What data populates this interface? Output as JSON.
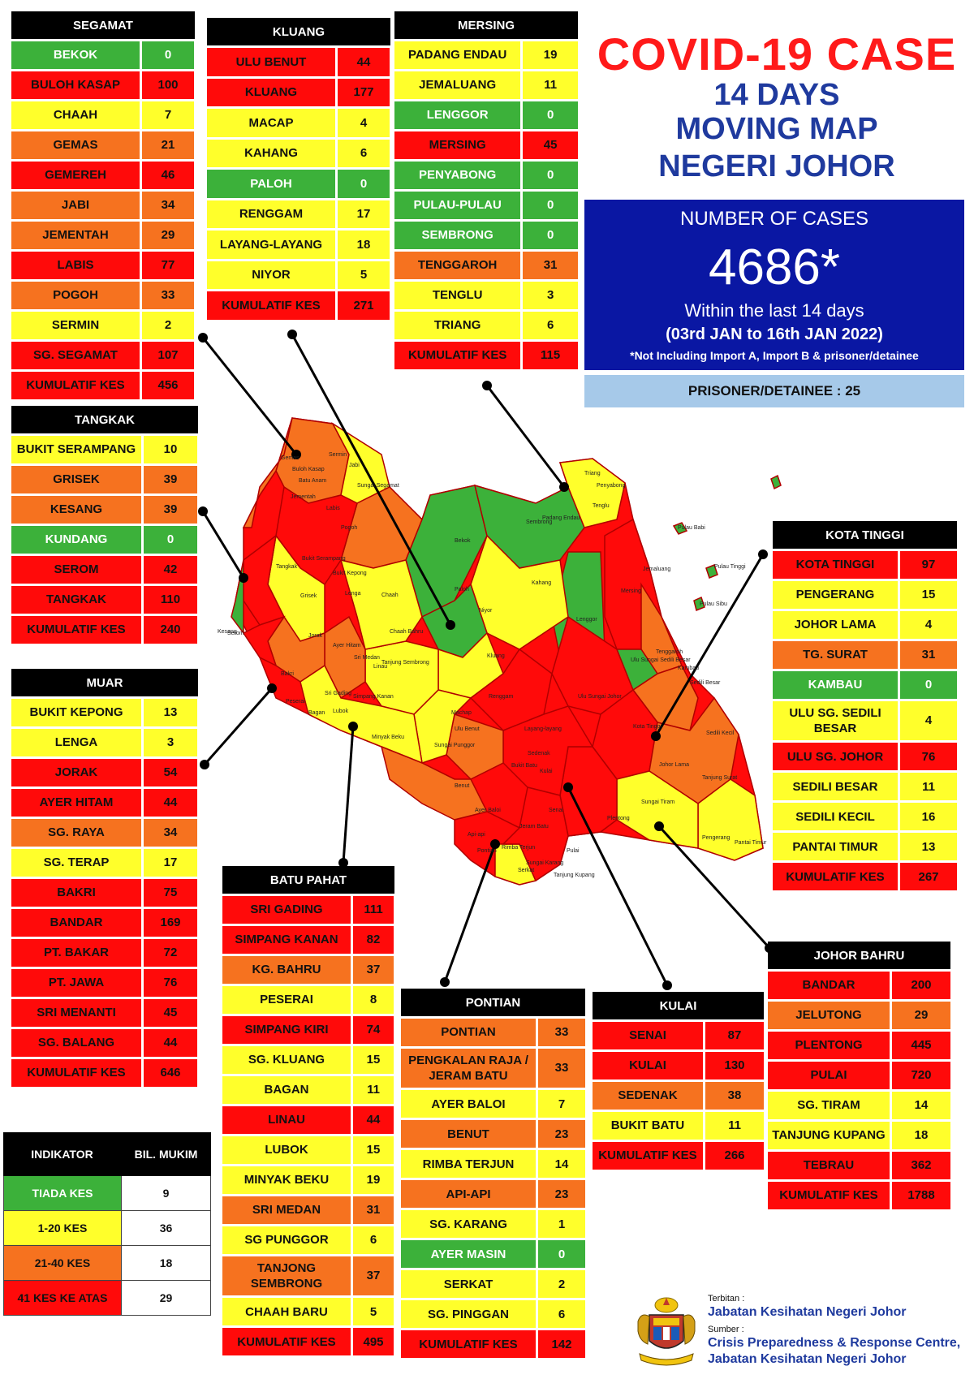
{
  "title": {
    "line1": "COVID-19 CASE",
    "line2": "14 DAYS",
    "line3": "MOVING MAP",
    "line4": "NEGERI JOHOR"
  },
  "summary": {
    "label": "NUMBER OF CASES",
    "total": "4686*",
    "within": "Within the last 14 days",
    "period": "(03rd JAN to 16th JAN 2022)",
    "note": "*Not Including Import A, Import B & prisoner/detainee",
    "prisoner": "PRISONER/DETAINEE : 25"
  },
  "colors": {
    "green": "#3cb13a",
    "yellow": "#ffff2b",
    "orange": "#f6721f",
    "red": "#ff0a0a",
    "title_red": "#ff1a1a",
    "title_blue": "#1f3a9e",
    "box_blue": "#0a17a3",
    "prisoner_blue": "#a6c9e9"
  },
  "districts": {
    "segamat": {
      "name": "SEGAMAT",
      "rows": [
        {
          "name": "BEKOK",
          "value": "0",
          "level": "green"
        },
        {
          "name": "BULOH KASAP",
          "value": "100",
          "level": "red"
        },
        {
          "name": "CHAAH",
          "value": "7",
          "level": "yellow"
        },
        {
          "name": "GEMAS",
          "value": "21",
          "level": "orange"
        },
        {
          "name": "GEMEREH",
          "value": "46",
          "level": "red"
        },
        {
          "name": "JABI",
          "value": "34",
          "level": "orange"
        },
        {
          "name": "JEMENTAH",
          "value": "29",
          "level": "orange"
        },
        {
          "name": "LABIS",
          "value": "77",
          "level": "red"
        },
        {
          "name": "POGOH",
          "value": "33",
          "level": "orange"
        },
        {
          "name": "SERMIN",
          "value": "2",
          "level": "yellow"
        },
        {
          "name": "SG. SEGAMAT",
          "value": "107",
          "level": "red"
        },
        {
          "name": "KUMULATIF KES",
          "value": "456",
          "level": "red"
        }
      ]
    },
    "kluang": {
      "name": "KLUANG",
      "rows": [
        {
          "name": "ULU BENUT",
          "value": "44",
          "level": "red"
        },
        {
          "name": "KLUANG",
          "value": "177",
          "level": "red"
        },
        {
          "name": "MACAP",
          "value": "4",
          "level": "yellow"
        },
        {
          "name": "KAHANG",
          "value": "6",
          "level": "yellow"
        },
        {
          "name": "PALOH",
          "value": "0",
          "level": "green"
        },
        {
          "name": "RENGGAM",
          "value": "17",
          "level": "yellow"
        },
        {
          "name": "LAYANG-LAYANG",
          "value": "18",
          "level": "yellow"
        },
        {
          "name": "NIYOR",
          "value": "5",
          "level": "yellow"
        },
        {
          "name": "KUMULATIF KES",
          "value": "271",
          "level": "red"
        }
      ]
    },
    "mersing": {
      "name": "MERSING",
      "rows": [
        {
          "name": "PADANG ENDAU",
          "value": "19",
          "level": "yellow"
        },
        {
          "name": "JEMALUANG",
          "value": "11",
          "level": "yellow"
        },
        {
          "name": "LENGGOR",
          "value": "0",
          "level": "green"
        },
        {
          "name": "MERSING",
          "value": "45",
          "level": "red"
        },
        {
          "name": "PENYABONG",
          "value": "0",
          "level": "green"
        },
        {
          "name": "PULAU-PULAU",
          "value": "0",
          "level": "green"
        },
        {
          "name": "SEMBRONG",
          "value": "0",
          "level": "green"
        },
        {
          "name": "TENGGAROH",
          "value": "31",
          "level": "orange"
        },
        {
          "name": "TENGLU",
          "value": "3",
          "level": "yellow"
        },
        {
          "name": "TRIANG",
          "value": "6",
          "level": "yellow"
        },
        {
          "name": "KUMULATIF KES",
          "value": "115",
          "level": "red"
        }
      ]
    },
    "tangkak": {
      "name": "TANGKAK",
      "rows": [
        {
          "name": "BUKIT SERAMPANG",
          "value": "10",
          "level": "yellow"
        },
        {
          "name": "GRISEK",
          "value": "39",
          "level": "orange"
        },
        {
          "name": "KESANG",
          "value": "39",
          "level": "orange"
        },
        {
          "name": "KUNDANG",
          "value": "0",
          "level": "green"
        },
        {
          "name": "SEROM",
          "value": "42",
          "level": "red"
        },
        {
          "name": "TANGKAK",
          "value": "110",
          "level": "red"
        },
        {
          "name": "KUMULATIF KES",
          "value": "240",
          "level": "red"
        }
      ]
    },
    "muar": {
      "name": "MUAR",
      "rows": [
        {
          "name": "BUKIT KEPONG",
          "value": "13",
          "level": "yellow"
        },
        {
          "name": "LENGA",
          "value": "3",
          "level": "yellow"
        },
        {
          "name": "JORAK",
          "value": "54",
          "level": "red"
        },
        {
          "name": "AYER HITAM",
          "value": "44",
          "level": "red"
        },
        {
          "name": "SG. RAYA",
          "value": "34",
          "level": "orange"
        },
        {
          "name": "SG. TERAP",
          "value": "17",
          "level": "yellow"
        },
        {
          "name": "BAKRI",
          "value": "75",
          "level": "red"
        },
        {
          "name": "BANDAR",
          "value": "169",
          "level": "red"
        },
        {
          "name": "PT. BAKAR",
          "value": "72",
          "level": "red"
        },
        {
          "name": "PT. JAWA",
          "value": "76",
          "level": "red"
        },
        {
          "name": "SRI MENANTI",
          "value": "45",
          "level": "red"
        },
        {
          "name": "SG. BALANG",
          "value": "44",
          "level": "red"
        },
        {
          "name": "KUMULATIF KES",
          "value": "646",
          "level": "red"
        }
      ]
    },
    "batu_pahat": {
      "name": "BATU PAHAT",
      "rows": [
        {
          "name": "SRI GADING",
          "value": "111",
          "level": "red"
        },
        {
          "name": "SIMPANG KANAN",
          "value": "82",
          "level": "red"
        },
        {
          "name": "KG. BAHRU",
          "value": "37",
          "level": "orange"
        },
        {
          "name": "PESERAI",
          "value": "8",
          "level": "yellow"
        },
        {
          "name": "SIMPANG KIRI",
          "value": "74",
          "level": "red"
        },
        {
          "name": "SG. KLUANG",
          "value": "15",
          "level": "yellow"
        },
        {
          "name": "BAGAN",
          "value": "11",
          "level": "yellow"
        },
        {
          "name": "LINAU",
          "value": "44",
          "level": "red"
        },
        {
          "name": "LUBOK",
          "value": "15",
          "level": "yellow"
        },
        {
          "name": "MINYAK BEKU",
          "value": "19",
          "level": "yellow"
        },
        {
          "name": "SRI MEDAN",
          "value": "31",
          "level": "orange"
        },
        {
          "name": "SG PUNGGOR",
          "value": "6",
          "level": "yellow"
        },
        {
          "name": "TANJONG SEMBRONG",
          "value": "37",
          "level": "orange"
        },
        {
          "name": "CHAAH BARU",
          "value": "5",
          "level": "yellow"
        },
        {
          "name": "KUMULATIF KES",
          "value": "495",
          "level": "red"
        }
      ]
    },
    "pontian": {
      "name": "PONTIAN",
      "rows": [
        {
          "name": "PONTIAN",
          "value": "33",
          "level": "orange"
        },
        {
          "name": "PENGKALAN RAJA / JERAM BATU",
          "value": "33",
          "level": "orange"
        },
        {
          "name": "AYER BALOI",
          "value": "7",
          "level": "yellow"
        },
        {
          "name": "BENUT",
          "value": "23",
          "level": "orange"
        },
        {
          "name": "RIMBA TERJUN",
          "value": "14",
          "level": "yellow"
        },
        {
          "name": "API-API",
          "value": "23",
          "level": "orange"
        },
        {
          "name": "SG. KARANG",
          "value": "1",
          "level": "yellow"
        },
        {
          "name": "AYER MASIN",
          "value": "0",
          "level": "green"
        },
        {
          "name": "SERKAT",
          "value": "2",
          "level": "yellow"
        },
        {
          "name": "SG. PINGGAN",
          "value": "6",
          "level": "yellow"
        },
        {
          "name": "KUMULATIF KES",
          "value": "142",
          "level": "red"
        }
      ]
    },
    "kulai": {
      "name": "KULAI",
      "rows": [
        {
          "name": "SENAI",
          "value": "87",
          "level": "red"
        },
        {
          "name": "KULAI",
          "value": "130",
          "level": "red"
        },
        {
          "name": "SEDENAK",
          "value": "38",
          "level": "orange"
        },
        {
          "name": "BUKIT BATU",
          "value": "11",
          "level": "yellow"
        },
        {
          "name": "KUMULATIF KES",
          "value": "266",
          "level": "red"
        }
      ]
    },
    "kota_tinggi": {
      "name": "KOTA TINGGI",
      "rows": [
        {
          "name": "KOTA TINGGI",
          "value": "97",
          "level": "red"
        },
        {
          "name": "PENGERANG",
          "value": "15",
          "level": "yellow"
        },
        {
          "name": "JOHOR LAMA",
          "value": "4",
          "level": "yellow"
        },
        {
          "name": "TG. SURAT",
          "value": "31",
          "level": "orange"
        },
        {
          "name": "KAMBAU",
          "value": "0",
          "level": "green"
        },
        {
          "name": "ULU SG. SEDILI BESAR",
          "value": "4",
          "level": "yellow"
        },
        {
          "name": "ULU  SG. JOHOR",
          "value": "76",
          "level": "red"
        },
        {
          "name": "SEDILI BESAR",
          "value": "11",
          "level": "yellow"
        },
        {
          "name": "SEDILI KECIL",
          "value": "16",
          "level": "yellow"
        },
        {
          "name": "PANTAI TIMUR",
          "value": "13",
          "level": "yellow"
        },
        {
          "name": "KUMULATIF KES",
          "value": "267",
          "level": "red"
        }
      ]
    },
    "johor_bahru": {
      "name": "JOHOR BAHRU",
      "rows": [
        {
          "name": "BANDAR",
          "value": "200",
          "level": "red"
        },
        {
          "name": "JELUTONG",
          "value": "29",
          "level": "orange"
        },
        {
          "name": "PLENTONG",
          "value": "445",
          "level": "red"
        },
        {
          "name": "PULAI",
          "value": "720",
          "level": "red"
        },
        {
          "name": "SG. TIRAM",
          "value": "14",
          "level": "yellow"
        },
        {
          "name": "TANJUNG KUPANG",
          "value": "18",
          "level": "yellow"
        },
        {
          "name": "TEBRAU",
          "value": "362",
          "level": "red"
        },
        {
          "name": "KUMULATIF KES",
          "value": "1788",
          "level": "red"
        }
      ]
    }
  },
  "legend": {
    "header_indicator": "INDIKATOR",
    "header_count": "BIL. MUKIM",
    "rows": [
      {
        "label": "TIADA KES",
        "count": "9",
        "level": "green"
      },
      {
        "label": "1-20 KES",
        "count": "36",
        "level": "yellow"
      },
      {
        "label": "21-40 KES",
        "count": "18",
        "level": "orange"
      },
      {
        "label": "41 KES KE ATAS",
        "count": "29",
        "level": "red"
      }
    ]
  },
  "map_labels": [
    "Gemas",
    "Buloh Kasap",
    "Batu Anam",
    "Sermin",
    "Jabi",
    "Sungai Segamat",
    "Jementah",
    "Labis",
    "Pogoh",
    "Bekok",
    "Sembrong",
    "Padang Endau",
    "Triang",
    "Penyabong",
    "Tenglu",
    "Pulau Babi",
    "Pulau Tinggi",
    "Pulau Sibu",
    "Jemaluang",
    "Mersing",
    "Lenggor",
    "Kahang",
    "Paloh",
    "Niyor",
    "Chaah",
    "Bukit Kepong",
    "Lenga",
    "Bukit Serampang",
    "Tangkak",
    "Grisek",
    "Serom",
    "Kesang",
    "Jorak",
    "Ayer Hitam",
    "Sri Medan",
    "Chaah Bahru",
    "Tanjung Sembrong",
    "Kluang",
    "Renggam",
    "Machap",
    "Layang-layang",
    "Ulu Benut",
    "Sedenak",
    "Bukit Batu",
    "Senai",
    "Kulai",
    "Tenggaroh",
    "Kambau",
    "Ulu Sungai Sedili Besar",
    "Sedili Besar",
    "Ulu Sungai Johor",
    "Kota Tinggi",
    "Sedili Kecil",
    "Johor Lama",
    "Tanjung Surat",
    "Pengerang",
    "Pantai Timur",
    "Sungai Tiram",
    "Plentong",
    "Pulai",
    "Tanjung Kupang",
    "Pontian",
    "Ayer Baloi",
    "Benut",
    "Rimba Terjun",
    "Sungai Karang",
    "Serkat",
    "Api-api",
    "Jeram Batu",
    "Bakri",
    "Linau",
    "Simpang Kanan",
    "Minyak Beku",
    "Lubok",
    "Bagan",
    "Peserai",
    "Sungai Punggor",
    "Sri Gading"
  ],
  "footer": {
    "terbitan_label": "Terbitan :",
    "publisher": "Jabatan Kesihatan Negeri Johor",
    "sumber_label": "Sumber :",
    "source_line1": "Crisis Preparedness & Response Centre,",
    "source_line2": "Jabatan Kesihatan Negeri Johor",
    "logo_icon": "coat-of-arms-icon"
  }
}
